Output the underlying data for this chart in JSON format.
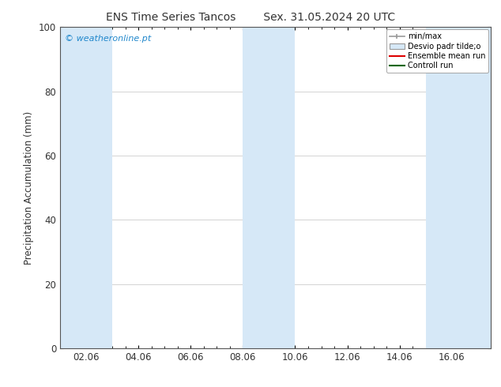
{
  "title_left": "ENS Time Series Tancos",
  "title_right": "Sex. 31.05.2024 20 UTC",
  "ylabel": "Precipitation Accumulation (mm)",
  "ylim": [
    0,
    100
  ],
  "yticks": [
    0,
    20,
    40,
    60,
    80,
    100
  ],
  "background_color": "#ffffff",
  "plot_bg_color": "#ffffff",
  "watermark_text": "© weatheronline.pt",
  "watermark_color": "#2288cc",
  "legend_labels": [
    "min/max",
    "Desvio padr tilde;o",
    "Ensemble mean run",
    "Controll run"
  ],
  "shaded_bands": [
    {
      "x_start": 0.0,
      "x_end": 2.0
    },
    {
      "x_start": 7.0,
      "x_end": 9.0
    },
    {
      "x_start": 14.0,
      "x_end": 16.5
    }
  ],
  "band_color": "#d6e8f7",
  "x_tick_positions": [
    1.0,
    3.0,
    5.0,
    7.0,
    9.0,
    11.0,
    13.0,
    15.0
  ],
  "x_tick_labels": [
    "02.06",
    "04.06",
    "06.06",
    "08.06",
    "10.06",
    "12.06",
    "14.06",
    "16.06"
  ],
  "xlim": [
    0.0,
    16.5
  ],
  "grid_color": "#cccccc",
  "title_fontsize": 10,
  "axis_fontsize": 8.5,
  "tick_fontsize": 8.5
}
